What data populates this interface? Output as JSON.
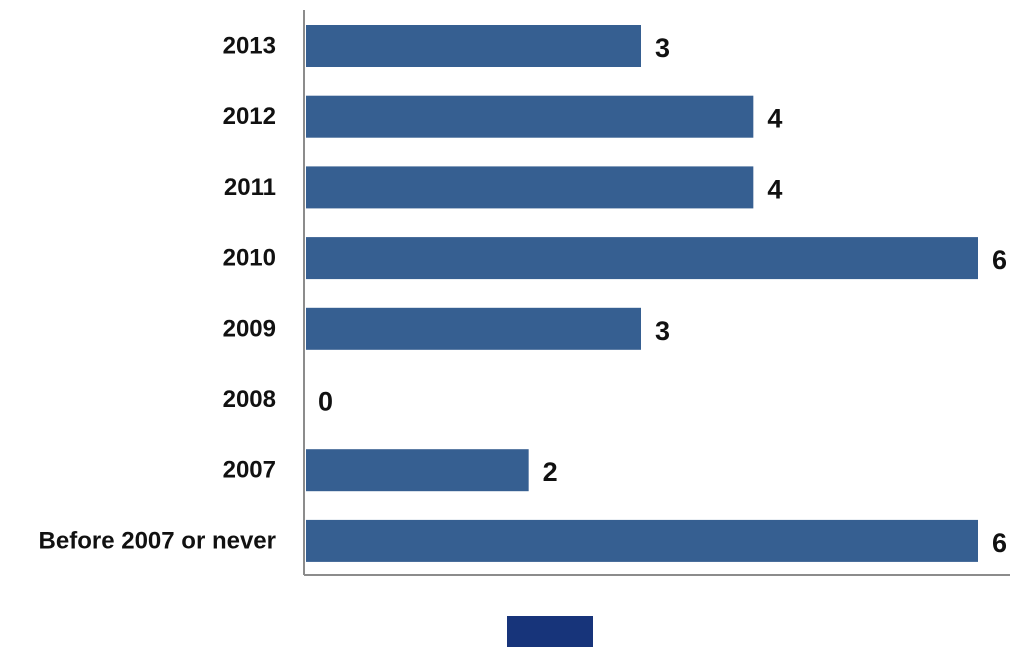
{
  "chart_data": {
    "type": "bar",
    "orientation": "horizontal",
    "title": "",
    "xlabel": "",
    "ylabel": "",
    "categories": [
      "2013",
      "2012",
      "2011",
      "2010",
      "2009",
      "2008",
      "2007",
      "Before 2007 or never"
    ],
    "series": [
      {
        "values": [
          3,
          4,
          4,
          6,
          3,
          0,
          2,
          6
        ]
      }
    ],
    "xlim": [
      0,
      6
    ],
    "grid": false,
    "data_labels": true,
    "legend_position": "bottom",
    "bar_color": "#365F91",
    "legend_color": "#17347A",
    "axis_color": "#8C8C8C"
  }
}
